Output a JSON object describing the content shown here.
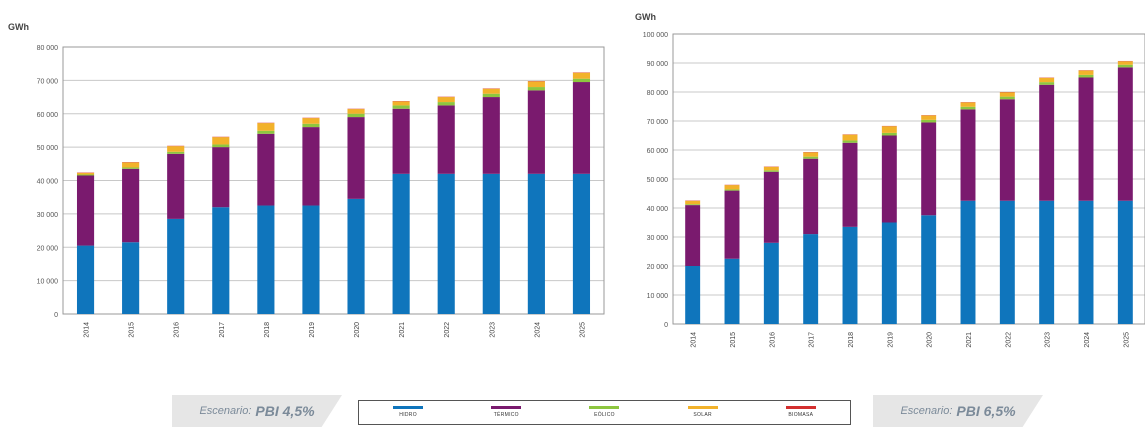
{
  "scenarios": [
    {
      "label": "Escenario:",
      "value": "PBI 4,5%"
    },
    {
      "label": "Escenario:",
      "value": "PBI 6,5%"
    }
  ],
  "legend": [
    {
      "label": "HIDRO",
      "color": "#0f75bc"
    },
    {
      "label": "TÉRMICO",
      "color": "#7a1a6e"
    },
    {
      "label": "EÓLICO",
      "color": "#8dc63f"
    },
    {
      "label": "SOLAR",
      "color": "#f2b22a"
    },
    {
      "label": "BIOMASA",
      "color": "#d32f2f"
    }
  ],
  "chart_data": [
    {
      "type": "bar",
      "stacked": true,
      "ylabel": "GWh",
      "ylim": [
        0,
        80000
      ],
      "y_ticks": [
        "0",
        "10 000",
        "20 000",
        "30 000",
        "40 000",
        "50 000",
        "60 000",
        "70 000",
        "80 000"
      ],
      "grid": true,
      "categories": [
        "2014",
        "2015",
        "2016",
        "2017",
        "2018",
        "2019",
        "2020",
        "2021",
        "2022",
        "2023",
        "2024",
        "2025"
      ],
      "series": [
        {
          "name": "HIDRO",
          "color": "#0f75bc",
          "values": [
            20500,
            21500,
            28500,
            32000,
            32500,
            32500,
            34500,
            42000,
            42000,
            42000,
            42000,
            42000
          ]
        },
        {
          "name": "TÉRMICO",
          "color": "#7a1a6e",
          "values": [
            21000,
            22000,
            19500,
            18000,
            21500,
            23500,
            24500,
            19500,
            20500,
            23000,
            25000,
            27500
          ]
        },
        {
          "name": "EÓLICO",
          "color": "#8dc63f",
          "values": [
            300,
            400,
            600,
            800,
            900,
            1000,
            1000,
            1000,
            1000,
            1000,
            1000,
            1000
          ]
        },
        {
          "name": "SOLAR",
          "color": "#f2b22a",
          "values": [
            500,
            1500,
            1700,
            2200,
            2300,
            1700,
            1400,
            1200,
            1500,
            1500,
            1700,
            1800
          ]
        },
        {
          "name": "BIOMASA",
          "color": "#d32f2f",
          "values": [
            100,
            100,
            100,
            100,
            100,
            100,
            100,
            100,
            100,
            100,
            100,
            100
          ]
        }
      ]
    },
    {
      "type": "bar",
      "stacked": true,
      "ylabel": "GWh",
      "ylim": [
        0,
        100000
      ],
      "y_ticks": [
        "0",
        "10 000",
        "20 000",
        "30 000",
        "40 000",
        "50 000",
        "60 000",
        "70 000",
        "80 000",
        "90 000",
        "100 000"
      ],
      "grid": true,
      "categories": [
        "2014",
        "2015",
        "2016",
        "2017",
        "2018",
        "2019",
        "2020",
        "2021",
        "2022",
        "2023",
        "2024",
        "2025"
      ],
      "series": [
        {
          "name": "HIDRO",
          "color": "#0f75bc",
          "values": [
            20000,
            22500,
            28000,
            31000,
            33500,
            35000,
            37500,
            42500,
            42500,
            42500,
            42500,
            42500
          ]
        },
        {
          "name": "TÉRMICO",
          "color": "#7a1a6e",
          "values": [
            21000,
            23500,
            24500,
            26000,
            29000,
            30000,
            32000,
            31500,
            35000,
            40000,
            42500,
            46000
          ]
        },
        {
          "name": "EÓLICO",
          "color": "#8dc63f",
          "values": [
            300,
            400,
            500,
            700,
            800,
            900,
            900,
            900,
            900,
            900,
            900,
            900
          ]
        },
        {
          "name": "SOLAR",
          "color": "#f2b22a",
          "values": [
            1200,
            1500,
            1200,
            1500,
            2000,
            2300,
            1500,
            1500,
            1500,
            1500,
            1500,
            1200
          ]
        },
        {
          "name": "BIOMASA",
          "color": "#d32f2f",
          "values": [
            100,
            100,
            100,
            100,
            100,
            100,
            100,
            100,
            100,
            100,
            100,
            100
          ]
        }
      ]
    }
  ]
}
